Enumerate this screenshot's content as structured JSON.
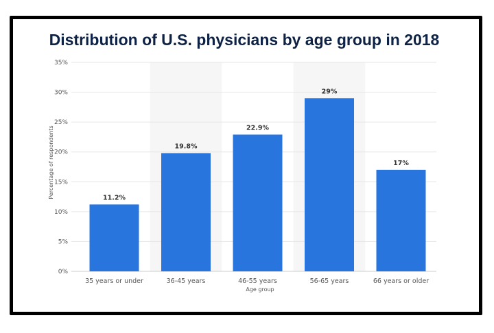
{
  "chart_data": {
    "type": "bar",
    "title": "Distribution of U.S. physicians by age group in 2018",
    "xlabel": "Age group",
    "ylabel": "Percentage of respondents",
    "categories": [
      "35 years or under",
      "36-45 years",
      "46-55 years",
      "56-65 years",
      "66 years or older"
    ],
    "values": [
      11.2,
      19.8,
      22.9,
      29,
      17
    ],
    "data_labels": [
      "11.2%",
      "19.8%",
      "22.9%",
      "29%",
      "17%"
    ],
    "ylim": [
      0,
      35
    ],
    "yticks": [
      0,
      5,
      10,
      15,
      20,
      25,
      30,
      35
    ],
    "ytick_labels": [
      "0%",
      "5%",
      "10%",
      "15%",
      "20%",
      "25%",
      "30%",
      "35%"
    ],
    "grid": true,
    "colors": {
      "bar": "#2876dd",
      "band": "#f6f6f6",
      "grid": "#e6e6e6",
      "title": "#0d2244"
    }
  }
}
